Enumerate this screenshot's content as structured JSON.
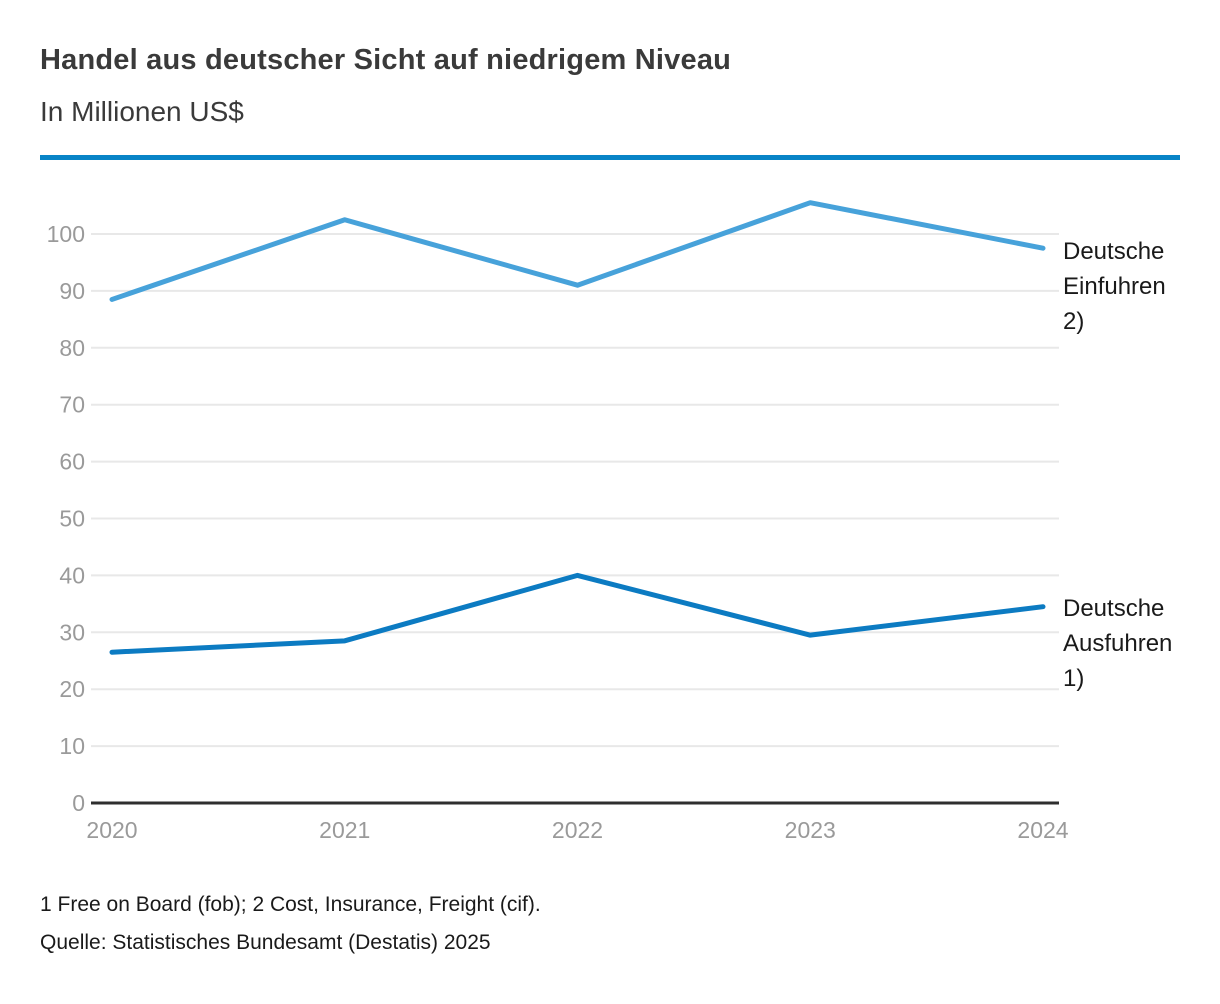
{
  "page": {
    "title": "Handel aus deutscher Sicht auf niedrigem Niveau",
    "subtitle": "In Millionen US$",
    "footnote": "1 Free on Board (fob); 2 Cost, Insurance, Freight (cif).",
    "source": "Quelle: Statistisches Bundesamt (Destatis) 2025"
  },
  "colors": {
    "accent_bar": "#0884c7",
    "einfuhren_line": "#47a2da",
    "ausfuhren_line": "#0c7bc2",
    "grid": "#e8e8e8",
    "axis": "#2e2e2e",
    "tick_label": "#9a9a9a",
    "title_text": "#3a3a3a",
    "annotation_text": "#1a1a1a"
  },
  "chart_data": {
    "type": "line",
    "title": "Handel aus deutscher Sicht auf niedrigem Niveau",
    "subtitle": "In Millionen US$",
    "xlabel": "",
    "ylabel": "In Millionen US$",
    "categories": [
      "2020",
      "2021",
      "2022",
      "2023",
      "2024"
    ],
    "series": [
      {
        "name": "Deutsche Einfuhren 2)",
        "color_key": "einfuhren_line",
        "values": [
          88.5,
          102.5,
          91,
          105.5,
          97.5
        ]
      },
      {
        "name": "Deutsche Ausfuhren 1)",
        "color_key": "ausfuhren_line",
        "values": [
          26.5,
          28.5,
          40,
          29.5,
          34.5
        ]
      }
    ],
    "ylim": [
      0,
      110
    ],
    "yticks": [
      0,
      10,
      20,
      30,
      40,
      50,
      60,
      70,
      80,
      90,
      100
    ],
    "grid": true,
    "legend_position": "right-annotations"
  }
}
